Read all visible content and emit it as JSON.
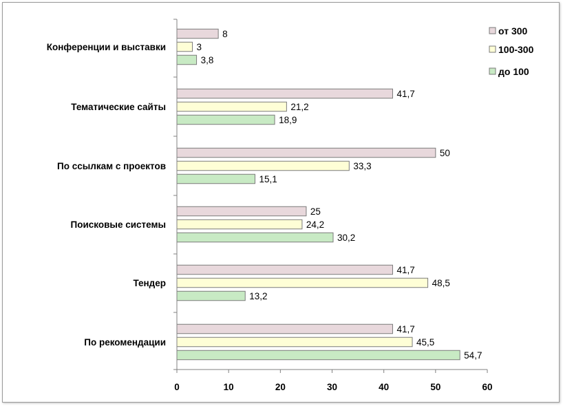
{
  "chart_data": {
    "type": "bar",
    "orientation": "horizontal",
    "categories": [
      "Конференции  и выставки",
      "Тематические  сайты",
      "По ссылкам  с проектов",
      "Поисковые  системы",
      "Тендер",
      "По рекомендации"
    ],
    "series": [
      {
        "name": "от 300",
        "color": "#e8d8dc",
        "values": [
          8,
          41.7,
          50,
          25,
          41.7,
          41.7
        ],
        "labels": [
          "8",
          "41,7",
          "50",
          "25",
          "41,7",
          "41,7"
        ]
      },
      {
        "name": "100-300",
        "color": "#fefed6",
        "values": [
          3,
          21.2,
          33.3,
          24.2,
          48.5,
          45.5
        ],
        "labels": [
          "3",
          "21,2",
          "33,3",
          "24,2",
          "48,5",
          "45,5"
        ]
      },
      {
        "name": "до 100",
        "color": "#c8eac4",
        "values": [
          3.8,
          18.9,
          15.1,
          30.2,
          13.2,
          54.7
        ],
        "labels": [
          "3,8",
          "18,9",
          "15,1",
          "30,2",
          "13,2",
          "54,7"
        ]
      }
    ],
    "xlim": [
      0,
      60
    ],
    "xticks": [
      "0",
      "10",
      "20",
      "30",
      "40",
      "50",
      "60"
    ],
    "grid": false,
    "legend_position": "top-right",
    "title": "",
    "xlabel": "",
    "ylabel": ""
  }
}
